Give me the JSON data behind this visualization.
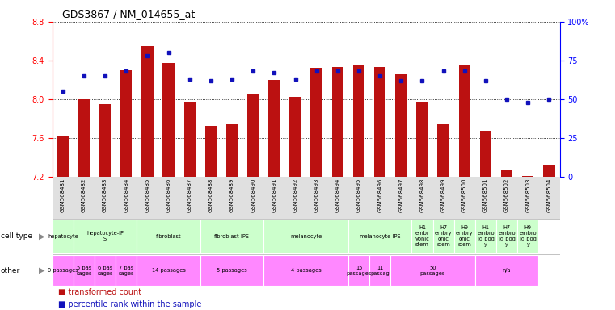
{
  "title": "GDS3867 / NM_014655_at",
  "samples": [
    "GSM568481",
    "GSM568482",
    "GSM568483",
    "GSM568484",
    "GSM568485",
    "GSM568486",
    "GSM568487",
    "GSM568488",
    "GSM568489",
    "GSM568490",
    "GSM568491",
    "GSM568492",
    "GSM568493",
    "GSM568494",
    "GSM568495",
    "GSM568496",
    "GSM568497",
    "GSM568498",
    "GSM568499",
    "GSM568500",
    "GSM568501",
    "GSM568502",
    "GSM568503",
    "GSM568504"
  ],
  "transformed_count": [
    7.62,
    8.0,
    7.95,
    8.3,
    8.55,
    8.37,
    7.97,
    7.72,
    7.74,
    8.06,
    8.2,
    8.02,
    8.32,
    8.33,
    8.35,
    8.33,
    8.26,
    7.97,
    7.75,
    8.36,
    7.67,
    7.27,
    7.21,
    7.32
  ],
  "percentile_rank": [
    55,
    65,
    65,
    68,
    78,
    80,
    63,
    62,
    63,
    68,
    67,
    63,
    68,
    68,
    68,
    65,
    62,
    62,
    68,
    68,
    62,
    50,
    48,
    50
  ],
  "ylim_left": [
    7.2,
    8.8
  ],
  "ylim_right": [
    0,
    100
  ],
  "yticks_left": [
    7.2,
    7.6,
    8.0,
    8.4,
    8.8
  ],
  "yticks_right": [
    0,
    25,
    50,
    75,
    100
  ],
  "bar_color": "#bb1111",
  "dot_color": "#1111bb",
  "cell_type_def": [
    {
      "label": "hepatocyte",
      "cols": [
        0
      ],
      "color": "#ccffcc"
    },
    {
      "label": "hepatocyte-iP\nS",
      "cols": [
        1,
        2,
        3
      ],
      "color": "#ccffcc"
    },
    {
      "label": "fibroblast",
      "cols": [
        4,
        5,
        6
      ],
      "color": "#ccffcc"
    },
    {
      "label": "fibroblast-IPS",
      "cols": [
        7,
        8,
        9
      ],
      "color": "#ccffcc"
    },
    {
      "label": "melanocyte",
      "cols": [
        10,
        11,
        12,
        13
      ],
      "color": "#ccffcc"
    },
    {
      "label": "melanocyte-IPS",
      "cols": [
        14,
        15,
        16
      ],
      "color": "#ccffcc"
    },
    {
      "label": "H1\nembr\nyonic\nstem",
      "cols": [
        17
      ],
      "color": "#ccffcc"
    },
    {
      "label": "H7\nembry\nonic\nstem",
      "cols": [
        18
      ],
      "color": "#ccffcc"
    },
    {
      "label": "H9\nembry\nonic\nstem",
      "cols": [
        19
      ],
      "color": "#ccffcc"
    },
    {
      "label": "H1\nembro\nid bod\ny",
      "cols": [
        20
      ],
      "color": "#ccffcc"
    },
    {
      "label": "H7\nembro\nid bod\ny",
      "cols": [
        21
      ],
      "color": "#ccffcc"
    },
    {
      "label": "H9\nembro\nid bod\ny",
      "cols": [
        22
      ],
      "color": "#ccffcc"
    }
  ],
  "other_def": [
    {
      "label": "0 passages",
      "cols": [
        0
      ],
      "color": "#ff88ff"
    },
    {
      "label": "5 pas\nsages",
      "cols": [
        1
      ],
      "color": "#ff88ff"
    },
    {
      "label": "6 pas\nsages",
      "cols": [
        2
      ],
      "color": "#ff88ff"
    },
    {
      "label": "7 pas\nsages",
      "cols": [
        3
      ],
      "color": "#ff88ff"
    },
    {
      "label": "14 passages",
      "cols": [
        4,
        5,
        6
      ],
      "color": "#ff88ff"
    },
    {
      "label": "5 passages",
      "cols": [
        7,
        8,
        9
      ],
      "color": "#ff88ff"
    },
    {
      "label": "4 passages",
      "cols": [
        10,
        11,
        12,
        13
      ],
      "color": "#ff88ff"
    },
    {
      "label": "15\npassages",
      "cols": [
        14
      ],
      "color": "#ff88ff"
    },
    {
      "label": "11\npassag",
      "cols": [
        15
      ],
      "color": "#ff88ff"
    },
    {
      "label": "50\npassages",
      "cols": [
        16,
        17,
        18,
        19
      ],
      "color": "#ff88ff"
    },
    {
      "label": "n/a",
      "cols": [
        20,
        21,
        22
      ],
      "color": "#ff88ff"
    }
  ]
}
